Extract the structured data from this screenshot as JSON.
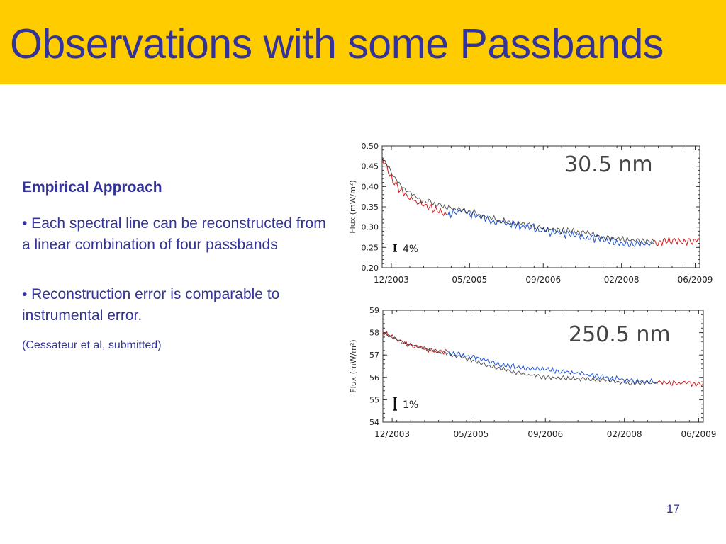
{
  "slide": {
    "title": "Observations with some Passbands",
    "heading": "Empirical Approach",
    "bullets": [
      "• Each spectral line can be reconstructed from a linear combination of four passbands",
      "• Reconstruction error is comparable to instrumental error."
    ],
    "citation": "(Cessateur et al, submitted)",
    "page_number": "17"
  },
  "colors": {
    "title_bar": "#ffcc00",
    "text": "#333399",
    "series_observed": "#222222",
    "series_reconstructed_blue": "#1f55d6",
    "series_reconstructed_red": "#cc1f1f"
  },
  "chart_data": [
    {
      "type": "line",
      "annotation": "30.5  nm",
      "ylabel": "Flux  (mW/m²)",
      "xlabel": "",
      "x_ticks": [
        "12/2003",
        "05/2005",
        "09/2006",
        "02/2008",
        "06/2009"
      ],
      "x_tick_dates": [
        "2003-12",
        "2005-05",
        "2006-09",
        "2008-02",
        "2009-06"
      ],
      "xlim": [
        "2003-10",
        "2009-07"
      ],
      "y_ticks": [
        "0.50",
        "0.45",
        "0.40",
        "0.35",
        "0.30",
        "0.25",
        "0.20"
      ],
      "ylim": [
        0.2,
        0.5
      ],
      "error_bar_label": "4%",
      "error_bar_fraction": 0.04,
      "series": [
        {
          "color": "#cc1f1f",
          "x": [
            "2003-10",
            "2003-12",
            "2004-02",
            "2004-04",
            "2004-06",
            "2004-08",
            "2004-10",
            "2004-12"
          ],
          "values": [
            0.47,
            0.42,
            0.39,
            0.37,
            0.36,
            0.35,
            0.34,
            0.33
          ]
        },
        {
          "color": "#1f55d6",
          "x": [
            "2004-12",
            "2005-03",
            "2005-06",
            "2005-09",
            "2005-12",
            "2006-03",
            "2006-06",
            "2006-09",
            "2006-12",
            "2007-03",
            "2007-06",
            "2007-09",
            "2007-12",
            "2008-03",
            "2008-06",
            "2008-09"
          ],
          "values": [
            0.33,
            0.34,
            0.33,
            0.32,
            0.31,
            0.305,
            0.3,
            0.29,
            0.285,
            0.28,
            0.275,
            0.27,
            0.265,
            0.26,
            0.26,
            0.26
          ]
        },
        {
          "color": "#cc1f1f",
          "x": [
            "2008-09",
            "2008-12",
            "2009-03",
            "2009-06",
            "2009-07"
          ],
          "values": [
            0.26,
            0.265,
            0.265,
            0.265,
            0.27
          ]
        },
        {
          "color": "#222222",
          "x": [
            "2003-10",
            "2004-02",
            "2004-06",
            "2004-10",
            "2005-02",
            "2005-06",
            "2005-10",
            "2006-02",
            "2006-06",
            "2006-10",
            "2007-02",
            "2007-06",
            "2007-10",
            "2008-02",
            "2008-06",
            "2008-09"
          ],
          "values": [
            0.47,
            0.4,
            0.37,
            0.355,
            0.345,
            0.335,
            0.32,
            0.31,
            0.305,
            0.295,
            0.29,
            0.285,
            0.275,
            0.27,
            0.265,
            0.265
          ]
        }
      ]
    },
    {
      "type": "line",
      "annotation": "250.5  nm",
      "ylabel": "Flux  (mW/m²)",
      "xlabel": "",
      "x_ticks": [
        "12/2003",
        "05/2005",
        "09/2006",
        "02/2008",
        "06/2009"
      ],
      "x_tick_dates": [
        "2003-12",
        "2005-05",
        "2006-09",
        "2008-02",
        "2009-06"
      ],
      "xlim": [
        "2003-10",
        "2009-07"
      ],
      "y_ticks": [
        "59",
        "58",
        "57",
        "56",
        "55",
        "54"
      ],
      "ylim": [
        54,
        59
      ],
      "error_bar_label": "1%",
      "error_bar_fraction": 0.01,
      "series": [
        {
          "color": "#cc1f1f",
          "x": [
            "2003-10",
            "2003-12",
            "2004-03",
            "2004-06",
            "2004-09",
            "2004-12"
          ],
          "values": [
            58.0,
            57.8,
            57.5,
            57.3,
            57.2,
            57.15
          ]
        },
        {
          "color": "#1f55d6",
          "x": [
            "2004-12",
            "2005-03",
            "2005-06",
            "2005-09",
            "2005-12",
            "2006-03",
            "2006-06",
            "2006-09",
            "2006-12",
            "2007-03",
            "2007-06",
            "2007-09",
            "2007-12",
            "2008-03",
            "2008-06",
            "2008-09"
          ],
          "values": [
            57.1,
            57.0,
            56.9,
            56.7,
            56.55,
            56.45,
            56.4,
            56.35,
            56.3,
            56.2,
            56.1,
            56.0,
            55.95,
            55.85,
            55.8,
            55.8
          ]
        },
        {
          "color": "#cc1f1f",
          "x": [
            "2008-09",
            "2008-12",
            "2009-03",
            "2009-06",
            "2009-07"
          ],
          "values": [
            55.8,
            55.75,
            55.75,
            55.7,
            55.75
          ]
        },
        {
          "color": "#222222",
          "x": [
            "2003-10",
            "2004-03",
            "2004-09",
            "2005-03",
            "2005-09",
            "2006-03",
            "2006-09",
            "2007-03",
            "2007-09",
            "2008-03",
            "2008-09"
          ],
          "values": [
            58.0,
            57.5,
            57.2,
            56.9,
            56.5,
            56.2,
            56.0,
            55.95,
            55.9,
            55.75,
            55.75
          ]
        }
      ]
    }
  ]
}
